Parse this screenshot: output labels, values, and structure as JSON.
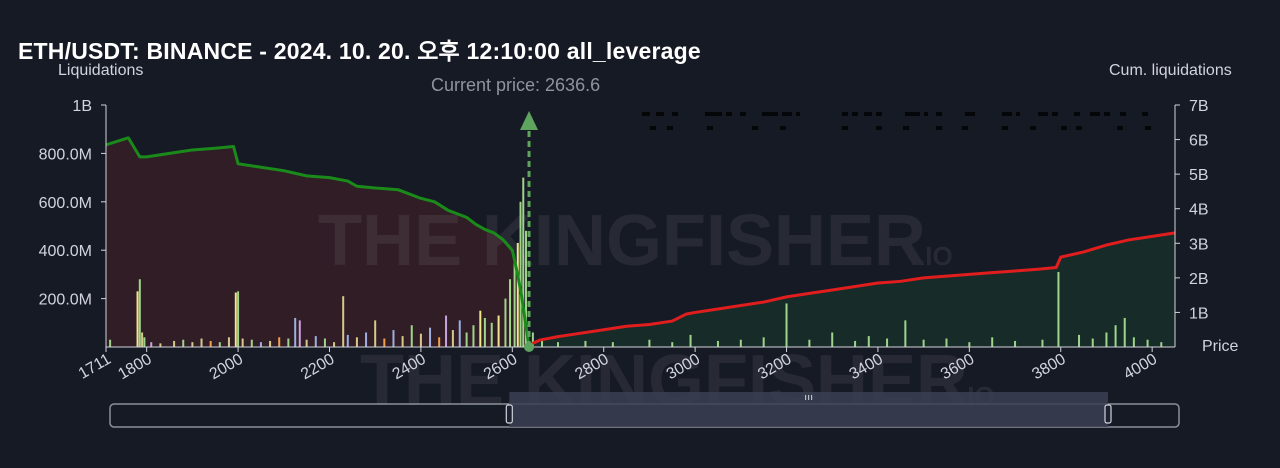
{
  "title": "ETH/USDT: BINANCE - 2024. 10. 20. 오후 12:10:00 all_leverage",
  "left_axis_title": "Liquidations",
  "right_axis_title": "Cum. liquidations",
  "right_axis_unit": "Price",
  "current_price_label": "Current price: 2636.6",
  "watermark": {
    "text": "THE KINGFISHER",
    "suffix": ".IO"
  },
  "colors": {
    "background": "#161a25",
    "short_cum_line": "#e11d1d",
    "long_cum_line": "#1a8a1a",
    "long_area": "#3a1f27",
    "short_area": "#18302a",
    "current_price_marker": "#5ea35e"
  },
  "chart_data": {
    "type": "bar",
    "current_price": 2636.6,
    "xlim": [
      1711,
      4050
    ],
    "x_ticks": [
      "1711",
      "1800",
      "2000",
      "2200",
      "2400",
      "2600",
      "2800",
      "3000",
      "3200",
      "3400",
      "3600",
      "3800",
      "4000"
    ],
    "y_left_ticks": [
      "1B",
      "800.0M",
      "600.0M",
      "400.0M",
      "200.0M"
    ],
    "y_left_range": [
      0,
      1000000000
    ],
    "y_right_ticks": [
      "7B",
      "6B",
      "5B",
      "4B",
      "3B",
      "2B",
      "1B"
    ],
    "y_right_range": [
      0,
      7000000000
    ],
    "series": [
      {
        "name": "Long liquidations (cumulative)",
        "side": "below",
        "x": [
          1711,
          1760,
          1785,
          1800,
          1850,
          1900,
          1950,
          1990,
          2000,
          2050,
          2100,
          2150,
          2200,
          2240,
          2260,
          2300,
          2350,
          2400,
          2430,
          2460,
          2480,
          2500,
          2520,
          2540,
          2560,
          2580,
          2600,
          2610,
          2620,
          2630,
          2636
        ],
        "values": [
          5850000000.0,
          6050000000.0,
          5500000000.0,
          5500000000.0,
          5600000000.0,
          5700000000.0,
          5750000000.0,
          5800000000.0,
          5300000000.0,
          5200000000.0,
          5100000000.0,
          4950000000.0,
          4900000000.0,
          4800000000.0,
          4650000000.0,
          4600000000.0,
          4550000000.0,
          4300000000.0,
          4200000000.0,
          3950000000.0,
          3850000000.0,
          3750000000.0,
          3550000000.0,
          3400000000.0,
          3300000000.0,
          3100000000.0,
          2800000000.0,
          2200000000.0,
          1500000000.0,
          600000000.0,
          50000000.0
        ]
      },
      {
        "name": "Short liquidations (cumulative)",
        "side": "above",
        "x": [
          2636,
          2660,
          2700,
          2750,
          2800,
          2850,
          2900,
          2950,
          2980,
          3000,
          3050,
          3100,
          3150,
          3200,
          3250,
          3300,
          3350,
          3400,
          3450,
          3500,
          3550,
          3600,
          3650,
          3700,
          3750,
          3790,
          3800,
          3850,
          3900,
          3950,
          4000,
          4050
        ],
        "values": [
          50000000.0,
          200000000.0,
          300000000.0,
          400000000.0,
          500000000.0,
          600000000.0,
          650000000.0,
          750000000.0,
          950000000.0,
          1000000000.0,
          1100000000.0,
          1200000000.0,
          1300000000.0,
          1450000000.0,
          1550000000.0,
          1650000000.0,
          1750000000.0,
          1850000000.0,
          1900000000.0,
          2000000000.0,
          2050000000.0,
          2100000000.0,
          2150000000.0,
          2200000000.0,
          2250000000.0,
          2300000000.0,
          2600000000.0,
          2750000000.0,
          2950000000.0,
          3100000000.0,
          3200000000.0,
          3300000000.0
        ]
      }
    ],
    "bars": [
      {
        "x": 1720,
        "v": 30000000,
        "c": "#9fd48a"
      },
      {
        "x": 1780,
        "v": 230000000,
        "c": "#f0e68c"
      },
      {
        "x": 1785,
        "v": 280000000,
        "c": "#9fd48a"
      },
      {
        "x": 1790,
        "v": 60000000,
        "c": "#d7c98a"
      },
      {
        "x": 1795,
        "v": 40000000,
        "c": "#9fd48a"
      },
      {
        "x": 1810,
        "v": 20000000,
        "c": "#c9a2e0"
      },
      {
        "x": 1830,
        "v": 15000000,
        "c": "#d7c98a"
      },
      {
        "x": 1860,
        "v": 25000000,
        "c": "#d7c98a"
      },
      {
        "x": 1880,
        "v": 30000000,
        "c": "#9fd48a"
      },
      {
        "x": 1900,
        "v": 20000000,
        "c": "#d7c98a"
      },
      {
        "x": 1920,
        "v": 35000000,
        "c": "#d7c98a"
      },
      {
        "x": 1940,
        "v": 25000000,
        "c": "#f6a04d"
      },
      {
        "x": 1960,
        "v": 20000000,
        "c": "#9fd48a"
      },
      {
        "x": 1980,
        "v": 40000000,
        "c": "#d7c98a"
      },
      {
        "x": 1995,
        "v": 225000000,
        "c": "#f0e68c"
      },
      {
        "x": 2000,
        "v": 230000000,
        "c": "#9fd48a"
      },
      {
        "x": 2010,
        "v": 35000000,
        "c": "#d7c98a"
      },
      {
        "x": 2030,
        "v": 30000000,
        "c": "#9fd48a"
      },
      {
        "x": 2050,
        "v": 20000000,
        "c": "#9db0e0"
      },
      {
        "x": 2070,
        "v": 25000000,
        "c": "#d7c98a"
      },
      {
        "x": 2090,
        "v": 40000000,
        "c": "#f6a04d"
      },
      {
        "x": 2110,
        "v": 35000000,
        "c": "#9fd48a"
      },
      {
        "x": 2125,
        "v": 120000000,
        "c": "#9db0e0"
      },
      {
        "x": 2135,
        "v": 110000000,
        "c": "#c9a2e0"
      },
      {
        "x": 2150,
        "v": 30000000,
        "c": "#d7c98a"
      },
      {
        "x": 2170,
        "v": 45000000,
        "c": "#9db0e0"
      },
      {
        "x": 2190,
        "v": 35000000,
        "c": "#9fd48a"
      },
      {
        "x": 2210,
        "v": 20000000,
        "c": "#d7c98a"
      },
      {
        "x": 2230,
        "v": 210000000,
        "c": "#d7c98a"
      },
      {
        "x": 2240,
        "v": 50000000,
        "c": "#9db0e0"
      },
      {
        "x": 2260,
        "v": 40000000,
        "c": "#d7c98a"
      },
      {
        "x": 2280,
        "v": 60000000,
        "c": "#9db0e0"
      },
      {
        "x": 2300,
        "v": 110000000,
        "c": "#d7c98a"
      },
      {
        "x": 2320,
        "v": 35000000,
        "c": "#f6a04d"
      },
      {
        "x": 2340,
        "v": 70000000,
        "c": "#9db0e0"
      },
      {
        "x": 2360,
        "v": 45000000,
        "c": "#d7c98a"
      },
      {
        "x": 2380,
        "v": 90000000,
        "c": "#9fd48a"
      },
      {
        "x": 2400,
        "v": 55000000,
        "c": "#d7c98a"
      },
      {
        "x": 2420,
        "v": 80000000,
        "c": "#9db0e0"
      },
      {
        "x": 2440,
        "v": 40000000,
        "c": "#f6a04d"
      },
      {
        "x": 2455,
        "v": 130000000,
        "c": "#c9a2e0"
      },
      {
        "x": 2470,
        "v": 70000000,
        "c": "#d7c98a"
      },
      {
        "x": 2485,
        "v": 110000000,
        "c": "#9db0e0"
      },
      {
        "x": 2500,
        "v": 60000000,
        "c": "#9fd48a"
      },
      {
        "x": 2515,
        "v": 90000000,
        "c": "#9fd48a"
      },
      {
        "x": 2530,
        "v": 150000000,
        "c": "#f0e68c"
      },
      {
        "x": 2540,
        "v": 120000000,
        "c": "#9fd48a"
      },
      {
        "x": 2555,
        "v": 100000000,
        "c": "#9fd48a"
      },
      {
        "x": 2570,
        "v": 130000000,
        "c": "#f0e68c"
      },
      {
        "x": 2585,
        "v": 200000000,
        "c": "#9fd48a"
      },
      {
        "x": 2595,
        "v": 280000000,
        "c": "#9fd48a"
      },
      {
        "x": 2605,
        "v": 360000000,
        "c": "#9fd48a"
      },
      {
        "x": 2612,
        "v": 430000000,
        "c": "#f0e68c"
      },
      {
        "x": 2618,
        "v": 600000000,
        "c": "#9fd48a"
      },
      {
        "x": 2624,
        "v": 700000000,
        "c": "#9fd48a"
      },
      {
        "x": 2630,
        "v": 480000000,
        "c": "#9fd48a"
      },
      {
        "x": 2645,
        "v": 60000000,
        "c": "#9fd48a"
      },
      {
        "x": 2665,
        "v": 30000000,
        "c": "#9fd48a"
      },
      {
        "x": 2700,
        "v": 20000000,
        "c": "#9fd48a"
      },
      {
        "x": 2760,
        "v": 25000000,
        "c": "#9fd48a"
      },
      {
        "x": 2820,
        "v": 20000000,
        "c": "#9fd48a"
      },
      {
        "x": 2900,
        "v": 30000000,
        "c": "#9fd48a"
      },
      {
        "x": 2950,
        "v": 20000000,
        "c": "#9fd48a"
      },
      {
        "x": 2990,
        "v": 50000000,
        "c": "#9fd48a"
      },
      {
        "x": 3050,
        "v": 25000000,
        "c": "#9fd48a"
      },
      {
        "x": 3100,
        "v": 30000000,
        "c": "#9fd48a"
      },
      {
        "x": 3150,
        "v": 40000000,
        "c": "#9fd48a"
      },
      {
        "x": 3200,
        "v": 180000000,
        "c": "#9fd48a"
      },
      {
        "x": 3250,
        "v": 30000000,
        "c": "#9fd48a"
      },
      {
        "x": 3300,
        "v": 60000000,
        "c": "#9fd48a"
      },
      {
        "x": 3350,
        "v": 25000000,
        "c": "#9fd48a"
      },
      {
        "x": 3380,
        "v": 45000000,
        "c": "#9fd48a"
      },
      {
        "x": 3420,
        "v": 35000000,
        "c": "#9fd48a"
      },
      {
        "x": 3460,
        "v": 110000000,
        "c": "#9fd48a"
      },
      {
        "x": 3500,
        "v": 30000000,
        "c": "#9fd48a"
      },
      {
        "x": 3550,
        "v": 35000000,
        "c": "#9fd48a"
      },
      {
        "x": 3600,
        "v": 20000000,
        "c": "#9fd48a"
      },
      {
        "x": 3650,
        "v": 40000000,
        "c": "#9fd48a"
      },
      {
        "x": 3700,
        "v": 25000000,
        "c": "#9fd48a"
      },
      {
        "x": 3760,
        "v": 30000000,
        "c": "#9fd48a"
      },
      {
        "x": 3795,
        "v": 310000000,
        "c": "#9fd48a"
      },
      {
        "x": 3840,
        "v": 50000000,
        "c": "#9fd48a"
      },
      {
        "x": 3870,
        "v": 35000000,
        "c": "#9fd48a"
      },
      {
        "x": 3900,
        "v": 60000000,
        "c": "#9fd48a"
      },
      {
        "x": 3920,
        "v": 90000000,
        "c": "#9fd48a"
      },
      {
        "x": 3940,
        "v": 120000000,
        "c": "#9fd48a"
      },
      {
        "x": 3960,
        "v": 40000000,
        "c": "#9fd48a"
      },
      {
        "x": 3990,
        "v": 30000000,
        "c": "#9fd48a"
      },
      {
        "x": 4020,
        "v": 20000000,
        "c": "#9fd48a"
      }
    ],
    "range_selector": {
      "from": 2600,
      "to": 3910
    }
  }
}
